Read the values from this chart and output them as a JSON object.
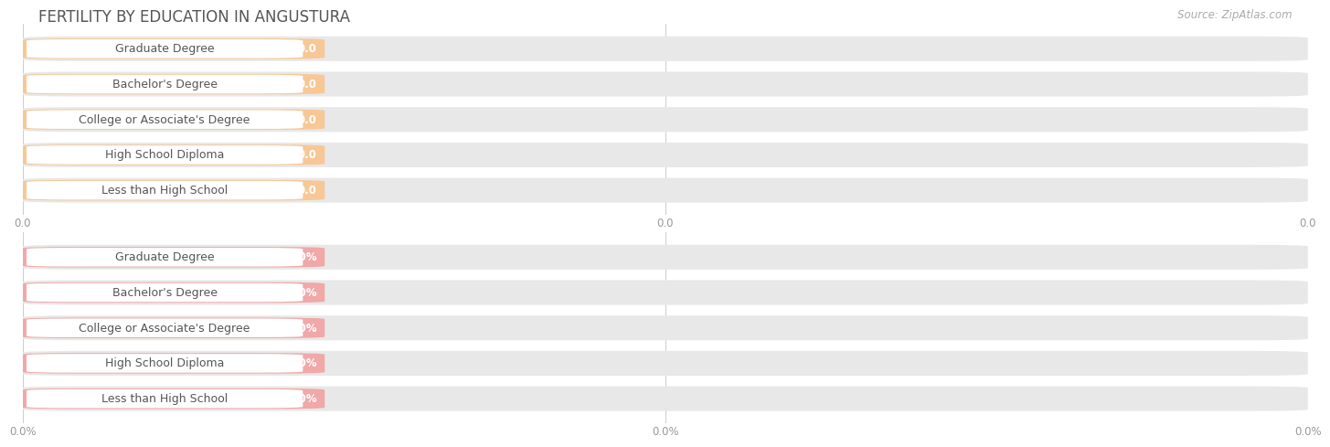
{
  "title": "FERTILITY BY EDUCATION IN ANGUSTURA",
  "source": "Source: ZipAtlas.com",
  "categories": [
    "Less than High School",
    "High School Diploma",
    "College or Associate's Degree",
    "Bachelor's Degree",
    "Graduate Degree"
  ],
  "top_values": [
    0.0,
    0.0,
    0.0,
    0.0,
    0.0
  ],
  "bottom_values": [
    0.0,
    0.0,
    0.0,
    0.0,
    0.0
  ],
  "top_bar_color": "#f7c896",
  "top_bar_shadow": "#e8e8e8",
  "bottom_bar_color": "#f0a8a8",
  "bottom_bar_shadow": "#e8e8e8",
  "title_fontsize": 12,
  "label_fontsize": 9,
  "value_fontsize": 8.5,
  "tick_fontsize": 8.5,
  "source_fontsize": 8.5,
  "bg_color": "#ffffff",
  "grid_color": "#cccccc",
  "text_color": "#555555",
  "value_color_top": "#c8963c",
  "value_color_bottom": "#cc6666",
  "xtick_labels_top": [
    "0.0",
    "0.0",
    "0.0"
  ],
  "xtick_labels_bottom": [
    "0.0%",
    "0.0%",
    "0.0%"
  ]
}
